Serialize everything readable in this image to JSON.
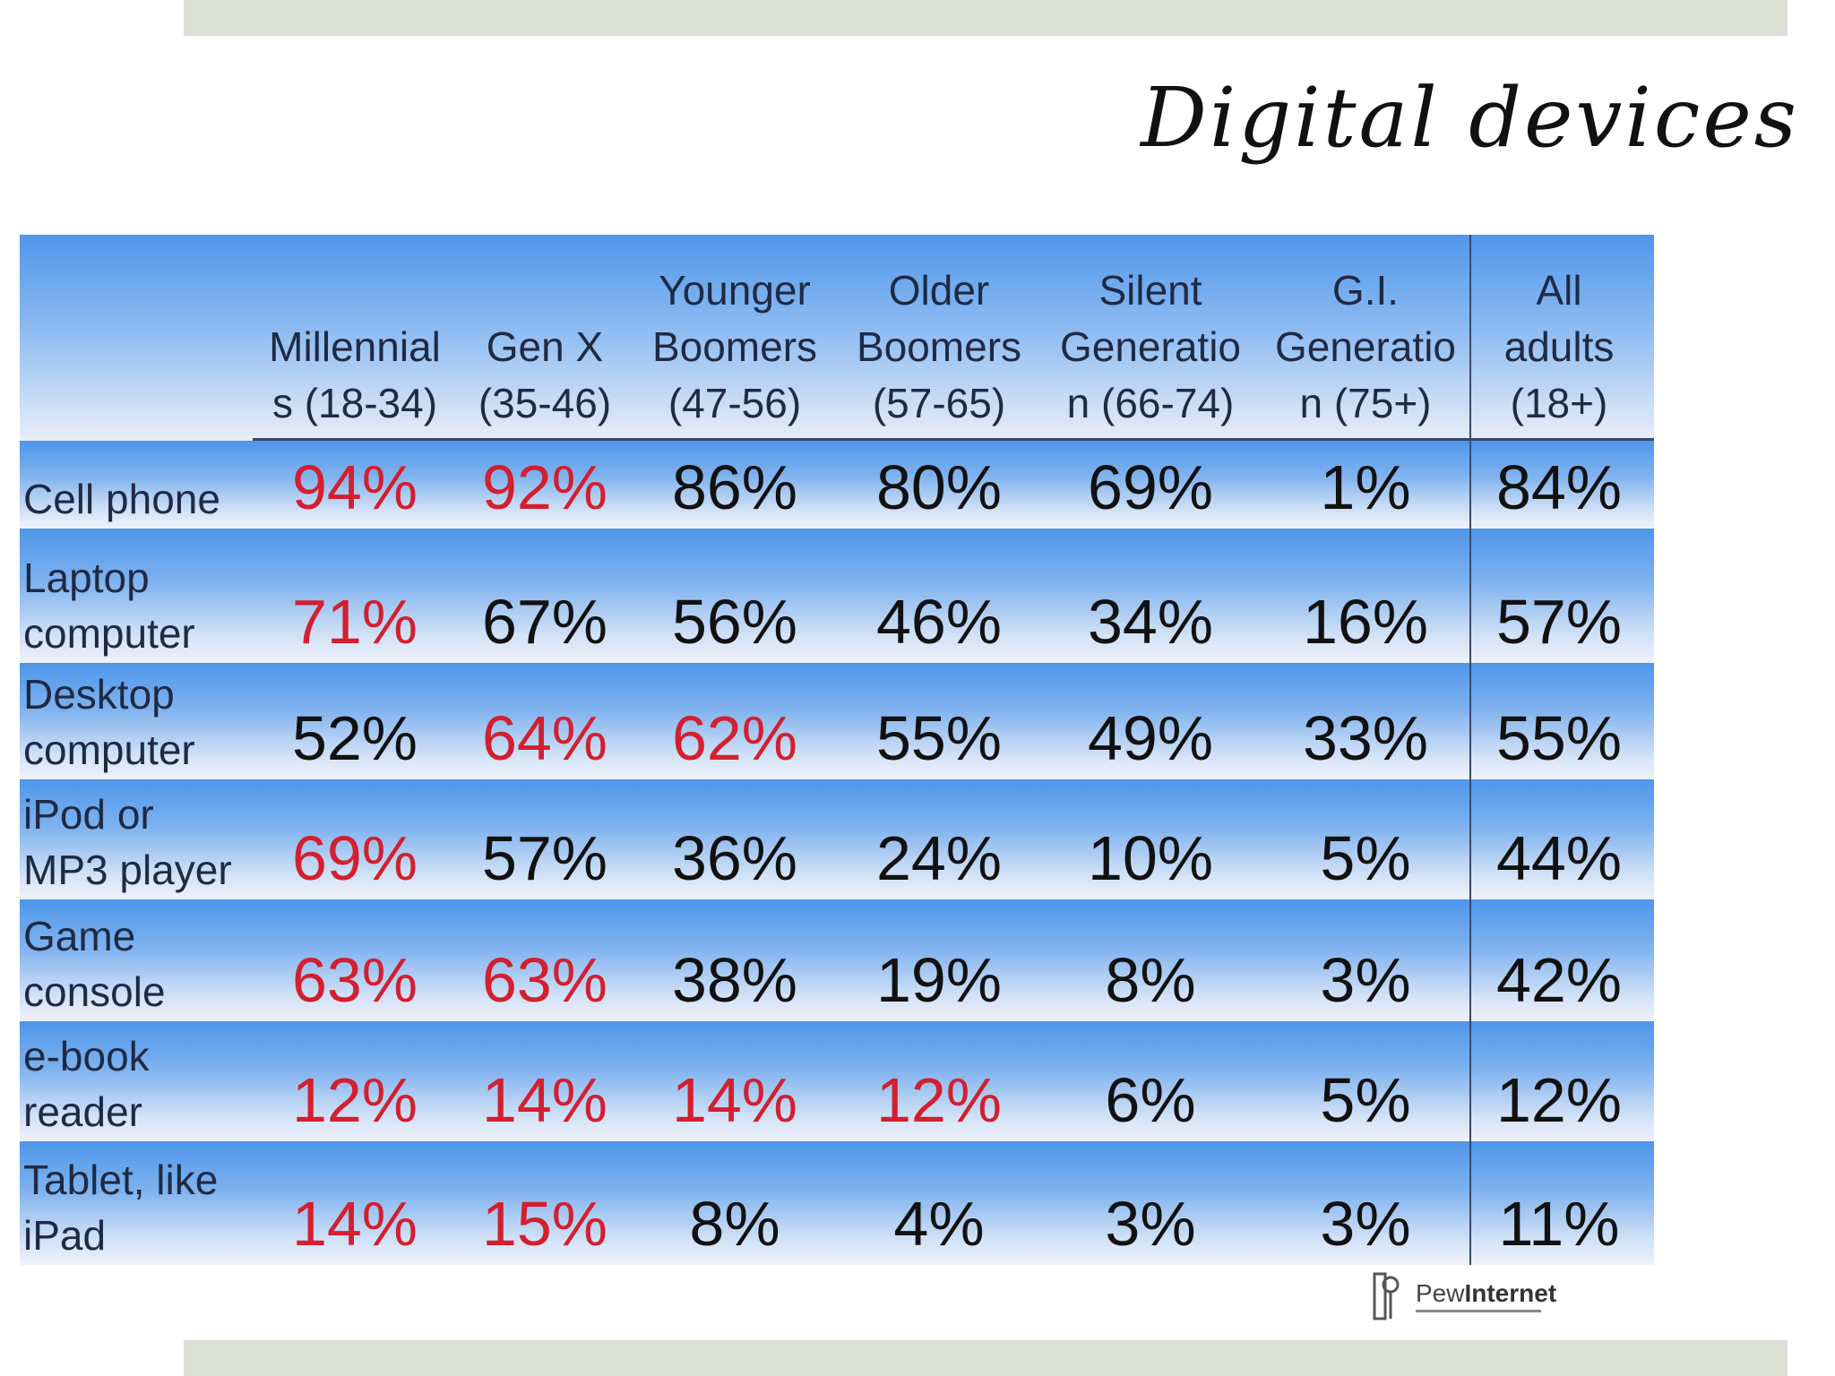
{
  "title": "Digital devices",
  "logo": {
    "pre": "Pew",
    "bold": "Internet"
  },
  "chart_data": {
    "type": "table",
    "title": "Digital devices",
    "columns": [
      "Millennial\ns (18-34)",
      "Gen X\n(35-46)",
      "Younger\nBoomers\n(47-56)",
      "Older\nBoomers\n(57-65)",
      "Silent\nGeneratio\nn (66-74)",
      "G.I.\nGeneratio\nn (75+)",
      "All\nadults\n(18+)"
    ],
    "rows": [
      {
        "label": "Cell phone",
        "values": [
          "94%",
          "92%",
          "86%",
          "80%",
          "69%",
          "1%",
          "84%"
        ],
        "highlight": [
          true,
          true,
          false,
          false,
          false,
          false,
          false
        ]
      },
      {
        "label": "Laptop\ncomputer",
        "values": [
          "71%",
          "67%",
          "56%",
          "46%",
          "34%",
          "16%",
          "57%"
        ],
        "highlight": [
          true,
          false,
          false,
          false,
          false,
          false,
          false
        ]
      },
      {
        "label": "Desktop\ncomputer",
        "values": [
          "52%",
          "64%",
          "62%",
          "55%",
          "49%",
          "33%",
          "55%"
        ],
        "highlight": [
          false,
          true,
          true,
          false,
          false,
          false,
          false
        ]
      },
      {
        "label": "iPod or\nMP3 player",
        "values": [
          "69%",
          "57%",
          "36%",
          "24%",
          "10%",
          "5%",
          "44%"
        ],
        "highlight": [
          true,
          false,
          false,
          false,
          false,
          false,
          false
        ]
      },
      {
        "label": "Game\nconsole",
        "values": [
          "63%",
          "63%",
          "38%",
          "19%",
          "8%",
          "3%",
          "42%"
        ],
        "highlight": [
          true,
          true,
          false,
          false,
          false,
          false,
          false
        ]
      },
      {
        "label": "e-book\nreader",
        "values": [
          "12%",
          "14%",
          "14%",
          "12%",
          "6%",
          "5%",
          "12%"
        ],
        "highlight": [
          true,
          true,
          true,
          true,
          false,
          false,
          false
        ]
      },
      {
        "label": "Tablet, like\niPad",
        "values": [
          "14%",
          "15%",
          "8%",
          "4%",
          "3%",
          "3%",
          "11%"
        ],
        "highlight": [
          true,
          true,
          false,
          false,
          false,
          false,
          false
        ]
      }
    ],
    "colors": {
      "highlight": "#d31f2e",
      "normal": "#111111",
      "header_text": "#1f2a44"
    }
  }
}
